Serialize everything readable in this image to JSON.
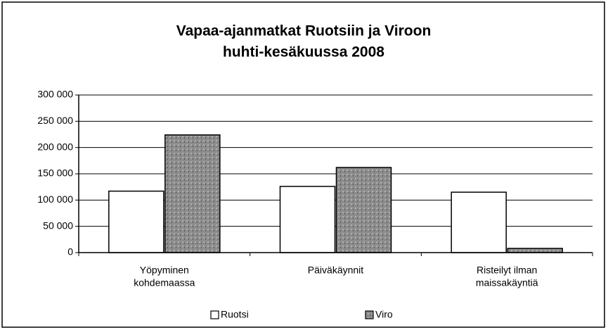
{
  "chart_data": {
    "type": "bar",
    "title": [
      "Vapaa-ajanmatkat Ruotsiin ja Viroon",
      "huhti-kesäkuussa 2008"
    ],
    "categories": [
      [
        "Yöpyminen",
        "kohdemaassa"
      ],
      [
        "Päiväkäynnit"
      ],
      [
        "Risteilyt ilman",
        "maissakäyntiä"
      ]
    ],
    "series": [
      {
        "name": "Ruotsi",
        "color": "#ffffff",
        "values": [
          117000,
          126000,
          115000
        ]
      },
      {
        "name": "Viro",
        "color": "#8c8c8c",
        "values": [
          224000,
          162000,
          8000
        ]
      }
    ],
    "ylim": [
      0,
      300000
    ],
    "yticks": [
      {
        "value": 0,
        "label": "0"
      },
      {
        "value": 50000,
        "label": "50 000"
      },
      {
        "value": 100000,
        "label": "100 000"
      },
      {
        "value": 150000,
        "label": "150 000"
      },
      {
        "value": 200000,
        "label": "200 000"
      },
      {
        "value": 250000,
        "label": "250 000"
      },
      {
        "value": 300000,
        "label": "300 000"
      }
    ],
    "grid": true,
    "legend": "bottom"
  }
}
